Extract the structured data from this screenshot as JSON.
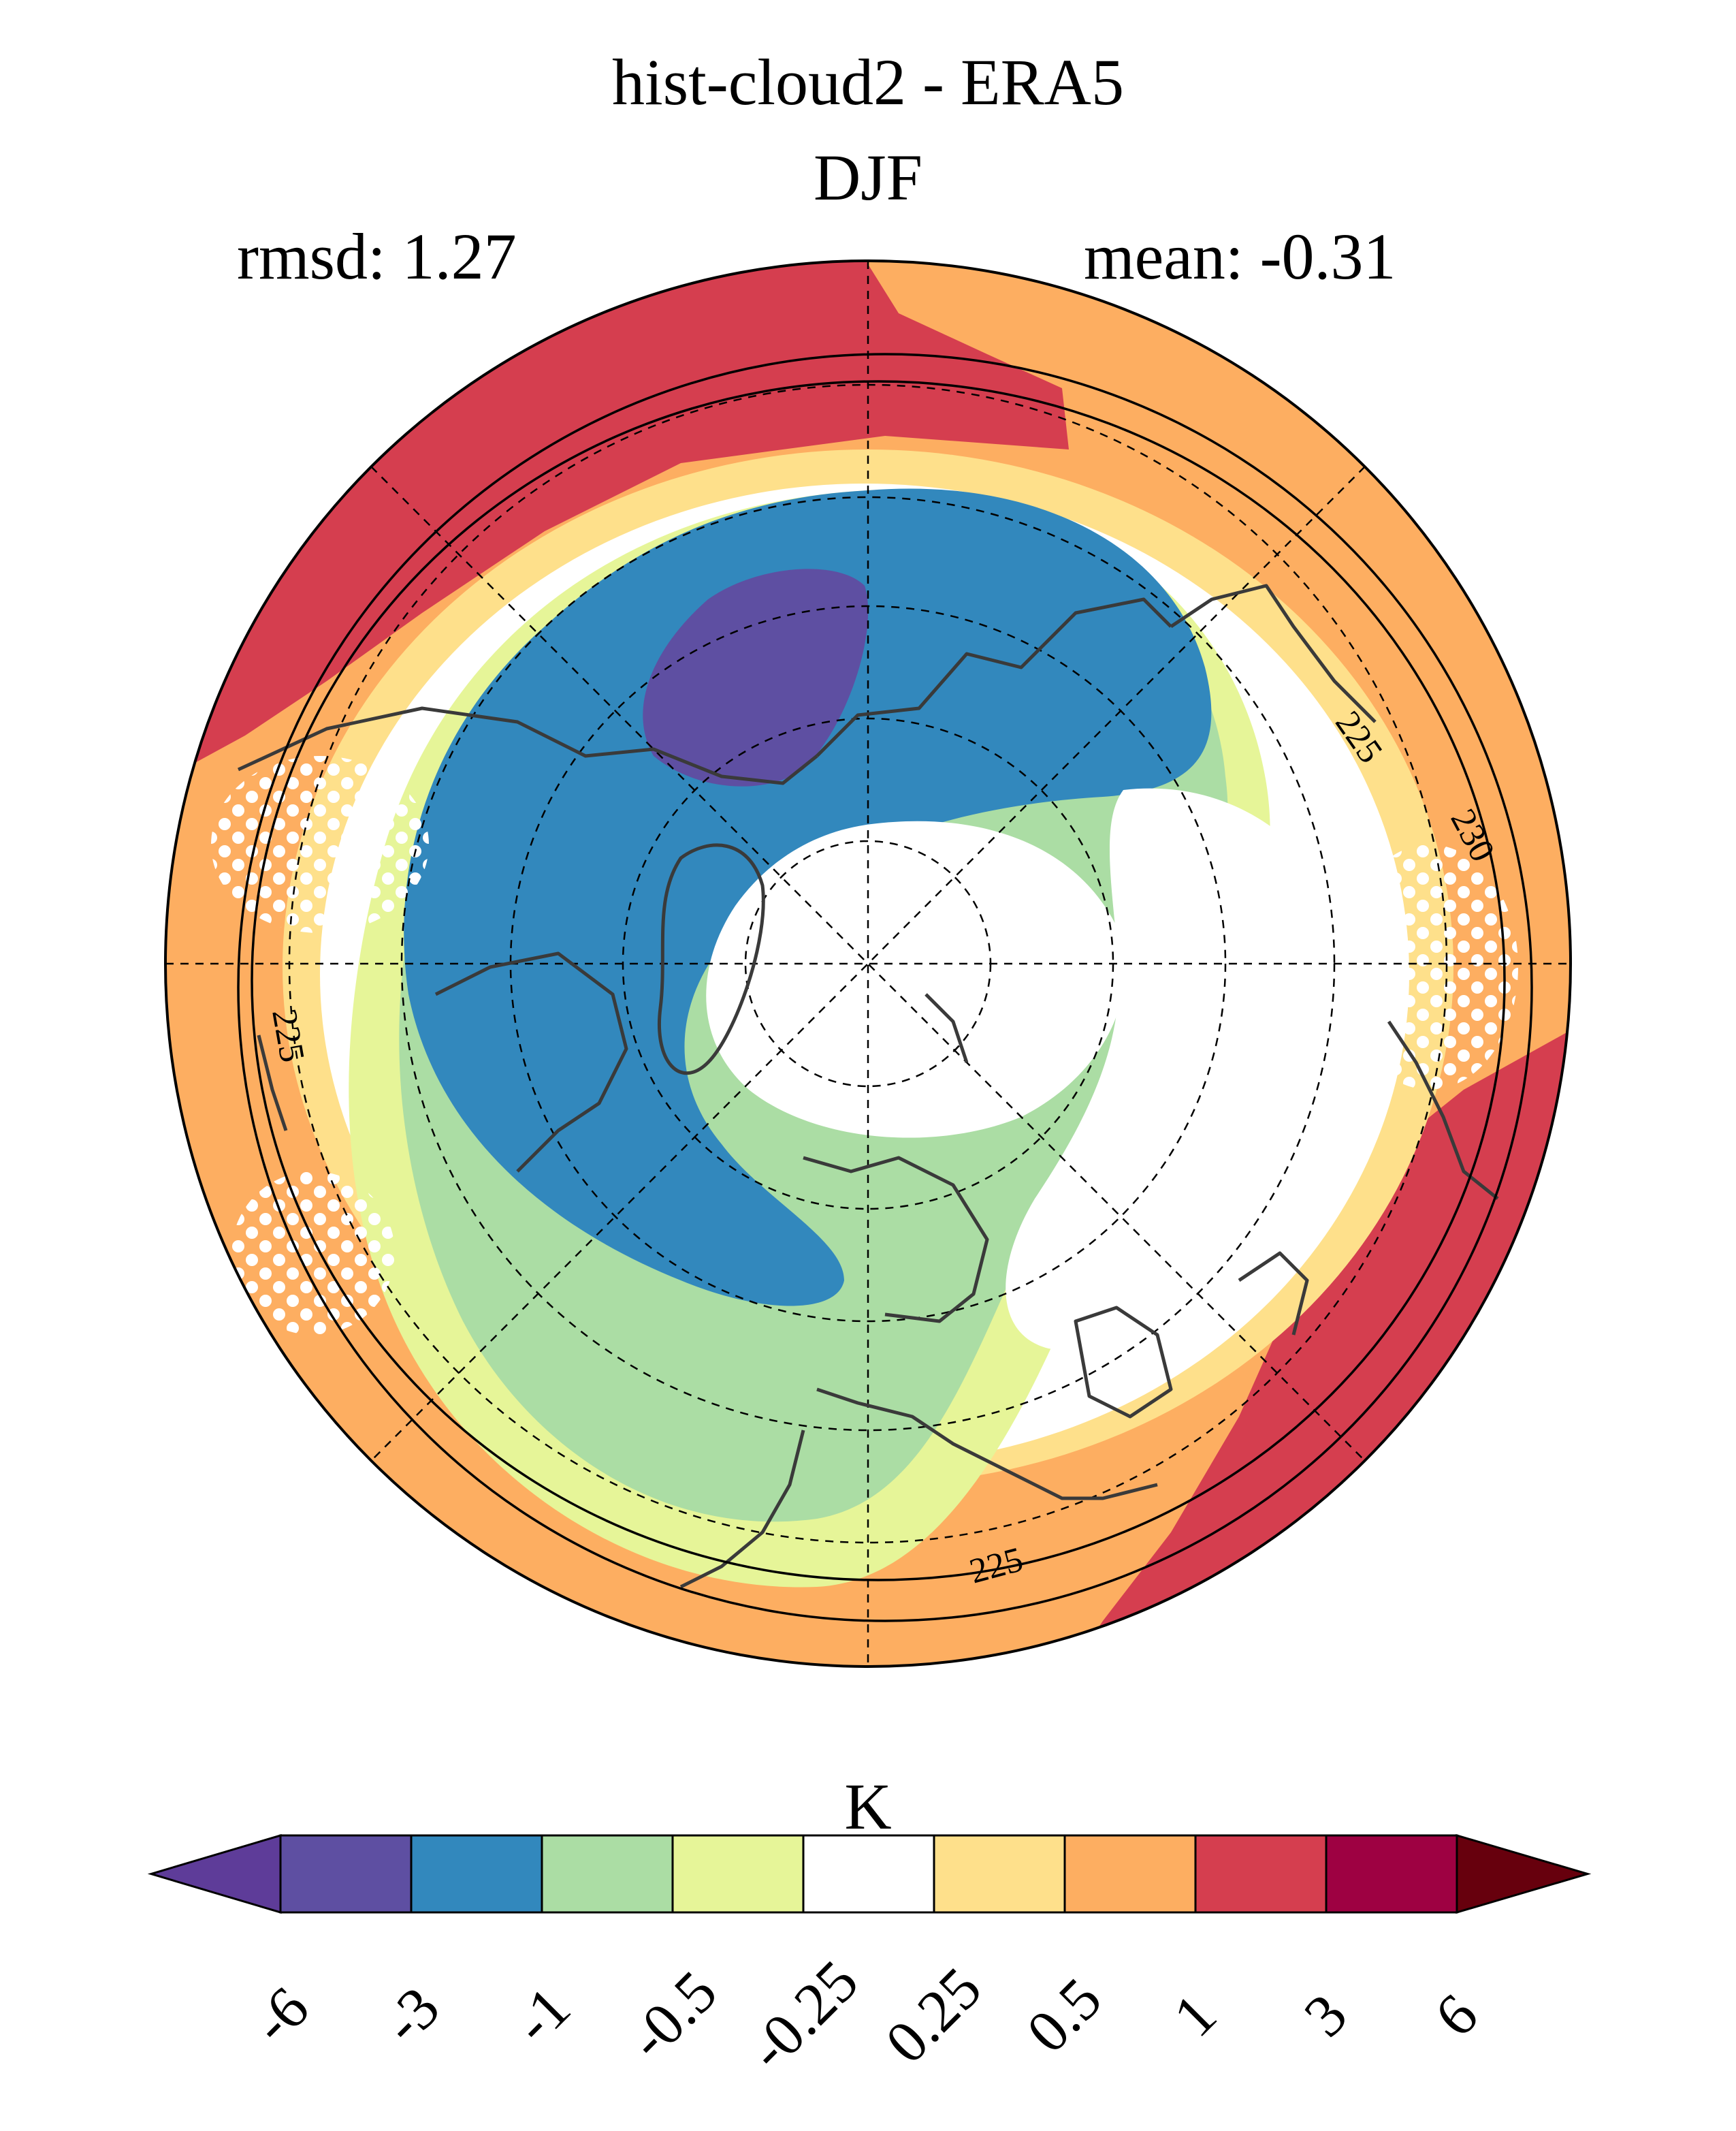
{
  "title": "hist-cloud2 - ERA5",
  "season": "DJF",
  "stats": {
    "rmsd_label": "rmsd: 1.27",
    "mean_label": "mean: -0.31"
  },
  "map": {
    "projection": "north-polar-stereographic",
    "contour_labels": [
      "225",
      "225",
      "225",
      "230"
    ]
  },
  "colorbar": {
    "unit": "K",
    "ticks": [
      "-6",
      "-3",
      "-1",
      "-0.5",
      "-0.25",
      "0.25",
      "0.5",
      "1",
      "3",
      "6"
    ],
    "colors": [
      "#5e4fa2",
      "#3288bd",
      "#abdda4",
      "#e6f598",
      "#ffffff",
      "#fee08b",
      "#fdae61",
      "#d53e4f",
      "#9e0142"
    ],
    "under_color": "#5e3c99",
    "over_color": "#67000d"
  }
}
